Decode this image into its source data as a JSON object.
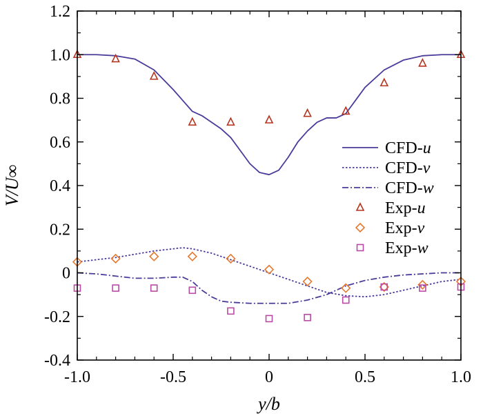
{
  "chart_data": {
    "type": "line",
    "title": "",
    "xlabel": "y/b",
    "ylabel": "V/U∞",
    "xlim": [
      -1.0,
      1.0
    ],
    "ylim": [
      -0.4,
      1.2
    ],
    "x_ticks": [
      "-1.0",
      "-0.5",
      "0",
      "0.5",
      "1.0"
    ],
    "x_tick_values": [
      -1.0,
      -0.5,
      0,
      0.5,
      1.0
    ],
    "y_ticks": [
      "-0.4",
      "-0.2",
      "0",
      "0.2",
      "0.4",
      "0.6",
      "0.8",
      "1.0",
      "1.2"
    ],
    "y_tick_values": [
      -0.4,
      -0.2,
      0,
      0.2,
      0.4,
      0.6,
      0.8,
      1.0,
      1.2
    ],
    "legend_position": "right",
    "series": [
      {
        "name": "CFD-u",
        "label_prefix": "CFD-",
        "label_var": "u",
        "kind": "line",
        "dash": "solid",
        "color": "#4b3a9a",
        "x": [
          -1.0,
          -0.9,
          -0.8,
          -0.7,
          -0.6,
          -0.5,
          -0.45,
          -0.4,
          -0.35,
          -0.3,
          -0.25,
          -0.2,
          -0.15,
          -0.1,
          -0.05,
          0,
          0.05,
          0.1,
          0.15,
          0.2,
          0.25,
          0.3,
          0.35,
          0.4,
          0.45,
          0.5,
          0.6,
          0.7,
          0.8,
          0.9,
          1.0
        ],
        "y": [
          1.0,
          1.0,
          0.995,
          0.98,
          0.93,
          0.84,
          0.79,
          0.74,
          0.72,
          0.69,
          0.66,
          0.62,
          0.56,
          0.5,
          0.46,
          0.45,
          0.47,
          0.53,
          0.6,
          0.65,
          0.69,
          0.71,
          0.71,
          0.73,
          0.79,
          0.85,
          0.93,
          0.975,
          0.995,
          1.0,
          1.0
        ]
      },
      {
        "name": "CFD-v",
        "label_prefix": "CFD-",
        "label_var": "v",
        "kind": "line",
        "dash": "dot",
        "color": "#4b3a9a",
        "x": [
          -1.0,
          -0.9,
          -0.8,
          -0.7,
          -0.6,
          -0.5,
          -0.45,
          -0.4,
          -0.3,
          -0.2,
          -0.1,
          0,
          0.1,
          0.2,
          0.3,
          0.4,
          0.5,
          0.6,
          0.7,
          0.8,
          0.9,
          1.0
        ],
        "y": [
          0.05,
          0.06,
          0.07,
          0.085,
          0.1,
          0.11,
          0.115,
          0.11,
          0.09,
          0.06,
          0.03,
          0.0,
          -0.03,
          -0.06,
          -0.09,
          -0.105,
          -0.11,
          -0.1,
          -0.08,
          -0.06,
          -0.04,
          -0.03
        ]
      },
      {
        "name": "CFD-w",
        "label_prefix": "CFD-",
        "label_var": "w",
        "kind": "line",
        "dash": "dashdot",
        "color": "#4b3a9a",
        "x": [
          -1.0,
          -0.9,
          -0.8,
          -0.7,
          -0.6,
          -0.5,
          -0.45,
          -0.4,
          -0.35,
          -0.3,
          -0.25,
          -0.2,
          -0.1,
          0,
          0.1,
          0.2,
          0.3,
          0.35,
          0.4,
          0.5,
          0.6,
          0.7,
          0.8,
          0.9,
          1.0
        ],
        "y": [
          0.0,
          -0.005,
          -0.015,
          -0.025,
          -0.025,
          -0.02,
          -0.02,
          -0.04,
          -0.08,
          -0.11,
          -0.13,
          -0.135,
          -0.14,
          -0.14,
          -0.14,
          -0.125,
          -0.1,
          -0.08,
          -0.06,
          -0.035,
          -0.02,
          -0.01,
          -0.005,
          0.0,
          0.0
        ]
      },
      {
        "name": "Exp-u",
        "label_prefix": "Exp-",
        "label_var": "u",
        "kind": "marker",
        "marker": "triangle",
        "color": "#b5341f",
        "x": [
          -1.0,
          -0.8,
          -0.6,
          -0.4,
          -0.2,
          0,
          0.2,
          0.4,
          0.6,
          0.8,
          1.0
        ],
        "y": [
          1.0,
          0.98,
          0.9,
          0.69,
          0.69,
          0.7,
          0.73,
          0.74,
          0.87,
          0.96,
          1.0
        ]
      },
      {
        "name": "Exp-v",
        "label_prefix": "Exp-",
        "label_var": "v",
        "kind": "marker",
        "marker": "diamond",
        "color": "#e6782e",
        "x": [
          -1.0,
          -0.8,
          -0.6,
          -0.4,
          -0.2,
          0,
          0.2,
          0.4,
          0.6,
          0.8,
          1.0
        ],
        "y": [
          0.05,
          0.065,
          0.075,
          0.075,
          0.065,
          0.015,
          -0.04,
          -0.07,
          -0.065,
          -0.055,
          -0.04
        ]
      },
      {
        "name": "Exp-w",
        "label_prefix": "Exp-",
        "label_var": "w",
        "kind": "marker",
        "marker": "square",
        "color": "#b84aa6",
        "x": [
          -1.0,
          -0.8,
          -0.6,
          -0.4,
          -0.2,
          0,
          0.2,
          0.4,
          0.6,
          0.8,
          1.0
        ],
        "y": [
          -0.07,
          -0.07,
          -0.07,
          -0.08,
          -0.175,
          -0.21,
          -0.205,
          -0.125,
          -0.065,
          -0.07,
          -0.065
        ]
      }
    ]
  }
}
